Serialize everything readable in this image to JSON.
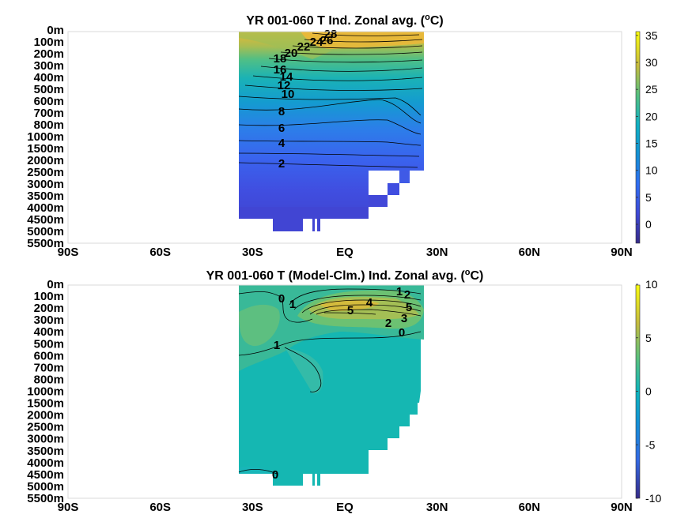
{
  "chart_data": [
    {
      "type": "heatmap",
      "title": "YR 001-060 T Ind. Zonal avg. (",
      "title_sup": "o",
      "title_unit": "C)",
      "x_ticks": [
        "90S",
        "60S",
        "30S",
        "EQ",
        "30N",
        "60N",
        "90N"
      ],
      "x_values": [
        -90,
        -60,
        -30,
        0,
        30,
        60,
        90
      ],
      "y_ticks": [
        "0m",
        "100m",
        "200m",
        "300m",
        "400m",
        "500m",
        "600m",
        "700m",
        "800m",
        "1000m",
        "1500m",
        "2000m",
        "2500m",
        "3000m",
        "3500m",
        "4000m",
        "4500m",
        "5000m",
        "5500m"
      ],
      "colorbar": {
        "ticks": [
          "35",
          "30",
          "25",
          "20",
          "15",
          "10",
          "5",
          "0"
        ],
        "tick_values": [
          35,
          30,
          25,
          20,
          15,
          10,
          5,
          0
        ],
        "range": [
          -3.5,
          36
        ]
      },
      "contour_labels": [
        "28",
        "26",
        "24",
        "22",
        "20",
        "18",
        "16",
        "14",
        "12",
        "10",
        "8",
        "6",
        "4",
        "2"
      ],
      "data_lat_range": [
        -35,
        25
      ],
      "grid": false
    },
    {
      "type": "heatmap",
      "title": "YR 001-060 T (Model-Clm.) Ind. Zonal avg. (",
      "title_sup": "o",
      "title_unit": "C)",
      "x_ticks": [
        "90S",
        "60S",
        "30S",
        "EQ",
        "30N",
        "60N",
        "90N"
      ],
      "x_values": [
        -90,
        -60,
        -30,
        0,
        30,
        60,
        90
      ],
      "y_ticks": [
        "0m",
        "100m",
        "200m",
        "300m",
        "400m",
        "500m",
        "600m",
        "700m",
        "800m",
        "1000m",
        "1500m",
        "2000m",
        "2500m",
        "3000m",
        "3500m",
        "4000m",
        "4500m",
        "5000m",
        "5500m"
      ],
      "colorbar": {
        "ticks": [
          "10",
          "5",
          "0",
          "-5",
          "-10"
        ],
        "tick_values": [
          10,
          5,
          0,
          -5,
          -10
        ],
        "range": [
          -10,
          10
        ]
      },
      "contour_labels": [
        "1",
        "2",
        "0",
        "1",
        "4",
        "5",
        "5",
        "3",
        "2",
        "0",
        "1",
        "0"
      ],
      "data_lat_range": [
        -35,
        25
      ],
      "grid": false
    }
  ]
}
